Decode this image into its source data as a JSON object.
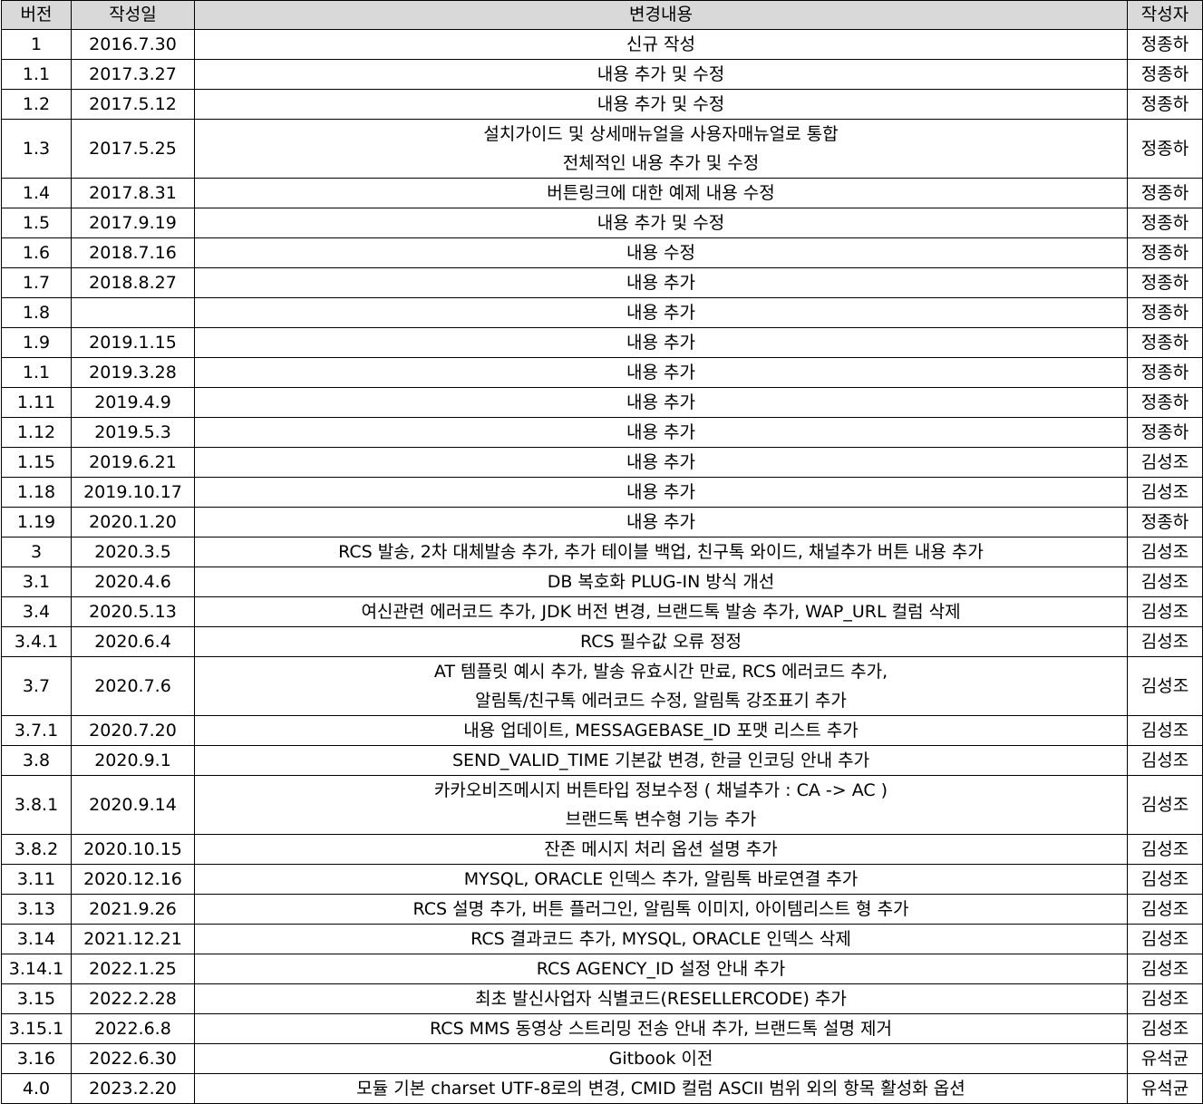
{
  "headers": {
    "version": "버전",
    "date": "작성일",
    "change": "변경내용",
    "author": "작성자"
  },
  "rows": [
    {
      "version": "1",
      "date": "2016.7.30",
      "change": [
        "신규 작성"
      ],
      "author": "정종하"
    },
    {
      "version": "1.1",
      "date": "2017.3.27",
      "change": [
        "내용 추가 및 수정"
      ],
      "author": "정종하"
    },
    {
      "version": "1.2",
      "date": "2017.5.12",
      "change": [
        "내용 추가 및 수정"
      ],
      "author": "정종하"
    },
    {
      "version": "1.3",
      "date": "2017.5.25",
      "change": [
        "설치가이드 및 상세매뉴얼을 사용자매뉴얼로 통합",
        "전체적인 내용 추가 및 수정"
      ],
      "author": "정종하"
    },
    {
      "version": "1.4",
      "date": "2017.8.31",
      "change": [
        "버튼링크에 대한 예제 내용 수정"
      ],
      "author": "정종하"
    },
    {
      "version": "1.5",
      "date": "2017.9.19",
      "change": [
        "내용 추가 및 수정"
      ],
      "author": "정종하"
    },
    {
      "version": "1.6",
      "date": "2018.7.16",
      "change": [
        "내용 수정"
      ],
      "author": "정종하"
    },
    {
      "version": "1.7",
      "date": "2018.8.27",
      "change": [
        "내용 추가"
      ],
      "author": "정종하"
    },
    {
      "version": "1.8",
      "date": "",
      "change": [
        "내용 추가"
      ],
      "author": "정종하"
    },
    {
      "version": "1.9",
      "date": "2019.1.15",
      "change": [
        "내용 추가"
      ],
      "author": "정종하"
    },
    {
      "version": "1.1",
      "date": "2019.3.28",
      "change": [
        "내용 추가"
      ],
      "author": "정종하"
    },
    {
      "version": "1.11",
      "date": "2019.4.9",
      "change": [
        "내용 추가"
      ],
      "author": "정종하"
    },
    {
      "version": "1.12",
      "date": "2019.5.3",
      "change": [
        "내용 추가"
      ],
      "author": "정종하"
    },
    {
      "version": "1.15",
      "date": "2019.6.21",
      "change": [
        "내용 추가"
      ],
      "author": "김성조"
    },
    {
      "version": "1.18",
      "date": "2019.10.17",
      "change": [
        "내용 추가"
      ],
      "author": "김성조"
    },
    {
      "version": "1.19",
      "date": "2020.1.20",
      "change": [
        "내용 추가"
      ],
      "author": "정종하"
    },
    {
      "version": "3",
      "date": "2020.3.5",
      "change": [
        "RCS 발송, 2차 대체발송 추가, 추가 테이블 백업, 친구톡 와이드, 채널추가 버튼 내용 추가"
      ],
      "author": "김성조"
    },
    {
      "version": "3.1",
      "date": "2020.4.6",
      "change": [
        "DB 복호화 PLUG-IN 방식 개선"
      ],
      "author": "김성조"
    },
    {
      "version": "3.4",
      "date": "2020.5.13",
      "change": [
        "여신관련 에러코드 추가, JDK 버전 변경, 브랜드톡 발송 추가, WAP_URL 컬럼 삭제"
      ],
      "author": "김성조"
    },
    {
      "version": "3.4.1",
      "date": "2020.6.4",
      "change": [
        "RCS 필수값 오류 정정"
      ],
      "author": "김성조"
    },
    {
      "version": "3.7",
      "date": "2020.7.6",
      "change": [
        "AT 템플릿 예시 추가, 발송 유효시간 만료, RCS 에러코드 추가,",
        "알림톡/친구톡 에러코드 수정, 알림톡 강조표기 추가"
      ],
      "author": "김성조"
    },
    {
      "version": "3.7.1",
      "date": "2020.7.20",
      "change": [
        "내용 업데이트, MESSAGEBASE_ID 포맷 리스트 추가"
      ],
      "author": "김성조"
    },
    {
      "version": "3.8",
      "date": "2020.9.1",
      "change": [
        "SEND_VALID_TIME 기본값 변경, 한글 인코딩 안내 추가"
      ],
      "author": "김성조"
    },
    {
      "version": "3.8.1",
      "date": "2020.9.14",
      "change": [
        "카카오비즈메시지 버튼타입 정보수정 ( 채널추가 : CA -> AC )",
        "브랜드톡 변수형 기능 추가"
      ],
      "author": "김성조"
    },
    {
      "version": "3.8.2",
      "date": "2020.10.15",
      "change": [
        "잔존 메시지 처리 옵션 설명 추가"
      ],
      "author": "김성조"
    },
    {
      "version": "3.11",
      "date": "2020.12.16",
      "change": [
        "MYSQL, ORACLE 인덱스 추가, 알림톡 바로연결 추가"
      ],
      "author": "김성조"
    },
    {
      "version": "3.13",
      "date": "2021.9.26",
      "change": [
        "RCS 설명 추가, 버튼 플러그인, 알림톡 이미지, 아이템리스트 형 추가"
      ],
      "author": "김성조"
    },
    {
      "version": "3.14",
      "date": "2021.12.21",
      "change": [
        "RCS 결과코드 추가, MYSQL, ORACLE 인덱스 삭제"
      ],
      "author": "김성조"
    },
    {
      "version": "3.14.1",
      "date": "2022.1.25",
      "change": [
        "RCS AGENCY_ID 설정 안내 추가"
      ],
      "author": "김성조"
    },
    {
      "version": "3.15",
      "date": "2022.2.28",
      "change": [
        "최초 발신사업자 식별코드(RESELLERCODE) 추가"
      ],
      "author": "김성조"
    },
    {
      "version": "3.15.1",
      "date": "2022.6.8",
      "change": [
        "RCS MMS 동영상 스트리밍 전송 안내 추가, 브랜드톡 설명 제거"
      ],
      "author": "김성조"
    },
    {
      "version": "3.16",
      "date": "2022.6.30",
      "change": [
        "Gitbook 이전"
      ],
      "author": "유석균"
    },
    {
      "version": "4.0",
      "date": "2023.2.20",
      "change": [
        "모듈 기본 charset UTF-8로의 변경, CMID 컬럼 ASCII 범위 외의 항목 활성화 옵션"
      ],
      "author": "유석균"
    }
  ]
}
